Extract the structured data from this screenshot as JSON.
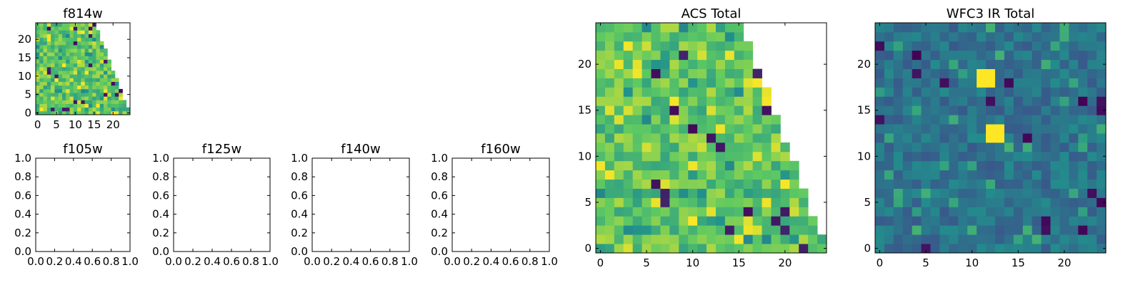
{
  "chart_data": [
    {
      "type": "heatmap",
      "title": "f814w",
      "xlim": [
        -0.5,
        24.5
      ],
      "ylim": [
        -0.5,
        24.5
      ],
      "xticks": [
        0,
        5,
        10,
        15,
        20
      ],
      "yticks": [
        0,
        5,
        10,
        15,
        20
      ],
      "colormap": "viridis",
      "mask": "upper-right triangle empty",
      "grid": false
    },
    {
      "type": "heatmap",
      "title": "f105w",
      "xlim": [
        0.0,
        1.0
      ],
      "ylim": [
        0.0,
        1.0
      ],
      "xticks": [
        "0.0",
        "0.2",
        "0.4",
        "0.6",
        "0.8",
        "1.0"
      ],
      "yticks": [
        "0.0",
        "0.2",
        "0.4",
        "0.6",
        "0.8",
        "1.0"
      ],
      "empty": true
    },
    {
      "type": "heatmap",
      "title": "f125w",
      "xlim": [
        0.0,
        1.0
      ],
      "ylim": [
        0.0,
        1.0
      ],
      "xticks": [
        "0.0",
        "0.2",
        "0.4",
        "0.6",
        "0.8",
        "1.0"
      ],
      "yticks": [
        "0.0",
        "0.2",
        "0.4",
        "0.6",
        "0.8",
        "1.0"
      ],
      "empty": true
    },
    {
      "type": "heatmap",
      "title": "f140w",
      "xlim": [
        0.0,
        1.0
      ],
      "ylim": [
        0.0,
        1.0
      ],
      "xticks": [
        "0.0",
        "0.2",
        "0.4",
        "0.6",
        "0.8",
        "1.0"
      ],
      "yticks": [
        "0.0",
        "0.2",
        "0.4",
        "0.6",
        "0.8",
        "1.0"
      ],
      "empty": true
    },
    {
      "type": "heatmap",
      "title": "f160w",
      "xlim": [
        0.0,
        1.0
      ],
      "ylim": [
        0.0,
        1.0
      ],
      "xticks": [
        "0.0",
        "0.2",
        "0.4",
        "0.6",
        "0.8",
        "1.0"
      ],
      "yticks": [
        "0.0",
        "0.2",
        "0.4",
        "0.6",
        "0.8",
        "1.0"
      ],
      "empty": true
    },
    {
      "type": "heatmap",
      "title": "ACS Total",
      "xlim": [
        -0.5,
        24.5
      ],
      "ylim": [
        -0.5,
        24.5
      ],
      "xticks": [
        0,
        5,
        10,
        15,
        20
      ],
      "yticks": [
        0,
        5,
        10,
        15,
        20
      ],
      "colormap": "viridis",
      "mask": "upper-right triangle empty",
      "grid": false
    },
    {
      "type": "heatmap",
      "title": "WFC3 IR Total",
      "xlim": [
        -0.5,
        24.5
      ],
      "ylim": [
        -0.5,
        24.5
      ],
      "xticks": [
        0,
        5,
        10,
        15,
        20
      ],
      "yticks": [
        0,
        5,
        10,
        15,
        20
      ],
      "colormap": "viridis",
      "bright_blocks": [
        {
          "x": [
            11,
            12
          ],
          "y": [
            18,
            19
          ]
        },
        {
          "x": [
            12,
            13
          ],
          "y": [
            12,
            13
          ]
        }
      ],
      "grid": false
    }
  ],
  "colors": {
    "viridis_dark": "#440154",
    "viridis_mid": "#21908c",
    "viridis_green": "#5ec962",
    "viridis_yellow": "#fde725",
    "axis": "#000000",
    "background": "#ffffff"
  }
}
